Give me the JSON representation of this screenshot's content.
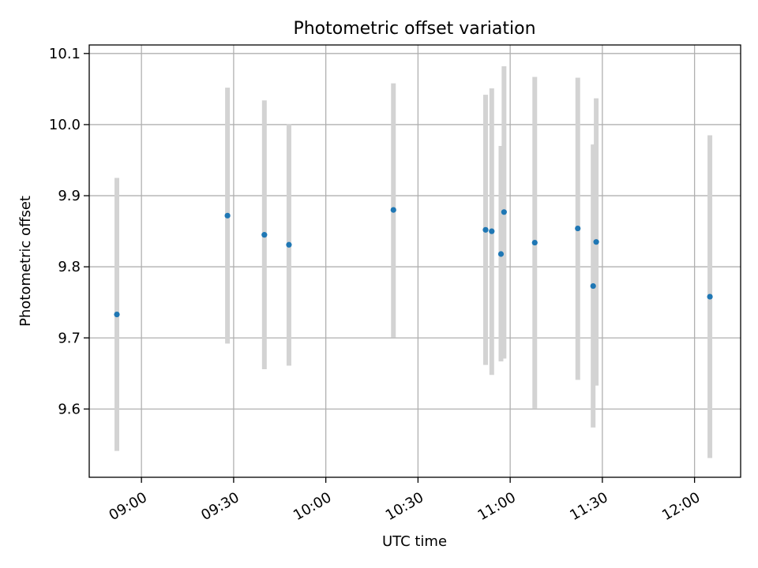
{
  "chart_data": {
    "type": "scatter",
    "title": "Photometric offset variation",
    "xlabel": "UTC time",
    "ylabel": "Photometric offset",
    "xlim": [
      "08:43",
      "12:15"
    ],
    "ylim": [
      9.504,
      10.112
    ],
    "x_ticks": [
      "09:00",
      "09:30",
      "10:00",
      "10:30",
      "11:00",
      "11:30",
      "12:00"
    ],
    "y_ticks": [
      "9.6",
      "9.7",
      "9.8",
      "9.9",
      "10.0",
      "10.1"
    ],
    "grid": true,
    "legend": "none",
    "point_color": "#1f77b4",
    "errorbar_color": "#d3d3d3",
    "points": [
      {
        "x": "08:52",
        "y": 9.733,
        "y_low": 9.541,
        "y_high": 9.925
      },
      {
        "x": "09:28",
        "y": 9.872,
        "y_low": 9.692,
        "y_high": 10.052
      },
      {
        "x": "09:40",
        "y": 9.845,
        "y_low": 9.656,
        "y_high": 10.034
      },
      {
        "x": "09:48",
        "y": 9.831,
        "y_low": 9.661,
        "y_high": 10.001
      },
      {
        "x": "10:22",
        "y": 9.88,
        "y_low": 9.701,
        "y_high": 10.058
      },
      {
        "x": "10:52",
        "y": 9.852,
        "y_low": 9.662,
        "y_high": 10.042
      },
      {
        "x": "10:54",
        "y": 9.85,
        "y_low": 9.648,
        "y_high": 10.051
      },
      {
        "x": "10:57",
        "y": 9.818,
        "y_low": 9.667,
        "y_high": 9.97
      },
      {
        "x": "10:58",
        "y": 9.877,
        "y_low": 9.671,
        "y_high": 10.082
      },
      {
        "x": "11:08",
        "y": 9.834,
        "y_low": 9.601,
        "y_high": 10.067
      },
      {
        "x": "11:22",
        "y": 9.854,
        "y_low": 9.641,
        "y_high": 10.066
      },
      {
        "x": "11:27",
        "y": 9.773,
        "y_low": 9.574,
        "y_high": 9.972
      },
      {
        "x": "11:28",
        "y": 9.835,
        "y_low": 9.633,
        "y_high": 10.037
      },
      {
        "x": "12:05",
        "y": 9.758,
        "y_low": 9.531,
        "y_high": 9.985
      }
    ]
  }
}
